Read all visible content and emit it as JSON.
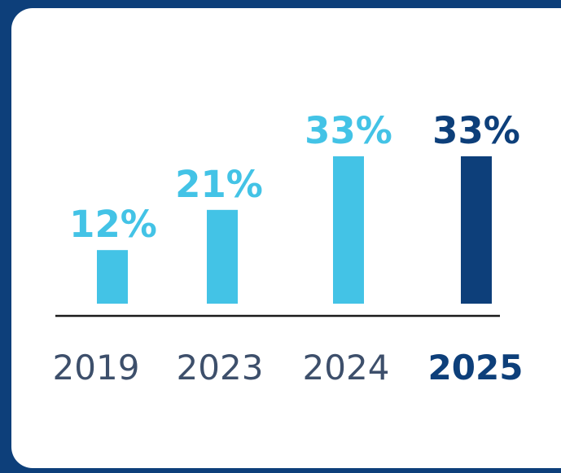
{
  "colors": {
    "frame": "#0d3f7a",
    "card": "#ffffff",
    "bar": "#43c3e6",
    "bar_highlight": "#0d3f7a",
    "category_text": "#3d4f6b",
    "baseline": "#1a1a1a"
  },
  "chart_data": {
    "type": "bar",
    "categories": [
      "2019",
      "2023",
      "2024",
      "2025"
    ],
    "values": [
      12,
      21,
      33,
      33
    ],
    "value_labels": [
      "12%",
      "21%",
      "33%",
      "33%"
    ],
    "highlight_index": 3,
    "ylim": [
      0,
      33
    ],
    "title": "",
    "xlabel": "",
    "ylabel": "",
    "grid": false,
    "legend": "none"
  }
}
